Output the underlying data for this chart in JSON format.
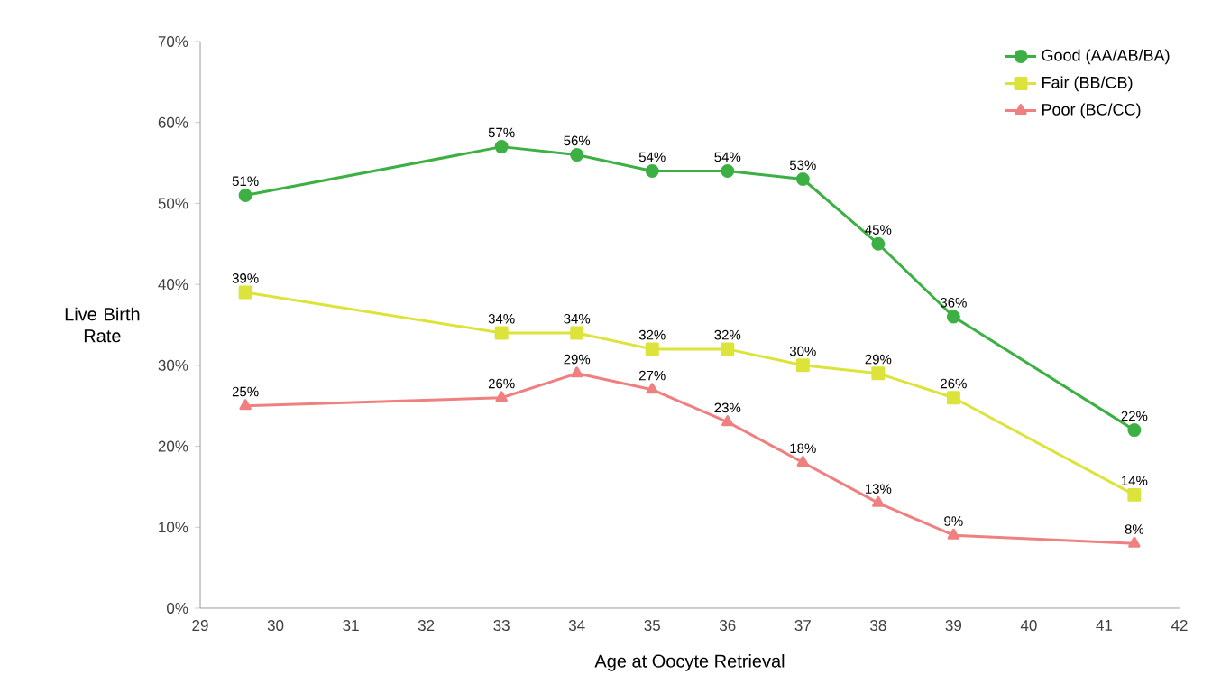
{
  "chart_data": {
    "type": "line",
    "xlabel": "Age at Oocyte Retrieval",
    "ylabel": "Live Birth Rate",
    "x": [
      29.6,
      33,
      34,
      35,
      36,
      37,
      38,
      39,
      41.4
    ],
    "series": [
      {
        "name": "Good (AA/AB/BA)",
        "color": "#3cb043",
        "marker": "circle",
        "values": [
          51,
          57,
          56,
          54,
          54,
          53,
          45,
          36,
          22
        ],
        "value_labels": [
          "51%",
          "57%",
          "56%",
          "54%",
          "54%",
          "53%",
          "45%",
          "36%",
          "22%"
        ]
      },
      {
        "name": "Fair (BB/CB)",
        "color": "#dce33a",
        "marker": "square",
        "values": [
          39,
          34,
          34,
          32,
          32,
          30,
          29,
          26,
          14
        ],
        "value_labels": [
          "39%",
          "34%",
          "34%",
          "32%",
          "32%",
          "30%",
          "29%",
          "26%",
          "14%"
        ]
      },
      {
        "name": "Poor (BC/CC)",
        "color": "#f08080",
        "marker": "triangle",
        "values": [
          25,
          26,
          29,
          27,
          23,
          18,
          13,
          9,
          8
        ],
        "value_labels": [
          "25%",
          "26%",
          "29%",
          "27%",
          "23%",
          "18%",
          "13%",
          "9%",
          "8%"
        ]
      }
    ],
    "xlim": [
      29,
      42
    ],
    "xticks": [
      29,
      30,
      31,
      32,
      33,
      34,
      35,
      36,
      37,
      38,
      39,
      40,
      41,
      42
    ],
    "ylim": [
      0,
      70
    ],
    "yticks": [
      {
        "value": 0,
        "label": "0%"
      },
      {
        "value": 10,
        "label": "10%"
      },
      {
        "value": 20,
        "label": "20%"
      },
      {
        "value": 30,
        "label": "30%"
      },
      {
        "value": 40,
        "label": "40%"
      },
      {
        "value": 50,
        "label": "50%"
      },
      {
        "value": 60,
        "label": "60%"
      },
      {
        "value": 70,
        "label": "70%"
      }
    ],
    "grid": false,
    "legend": "top right",
    "line_style": "solid"
  }
}
